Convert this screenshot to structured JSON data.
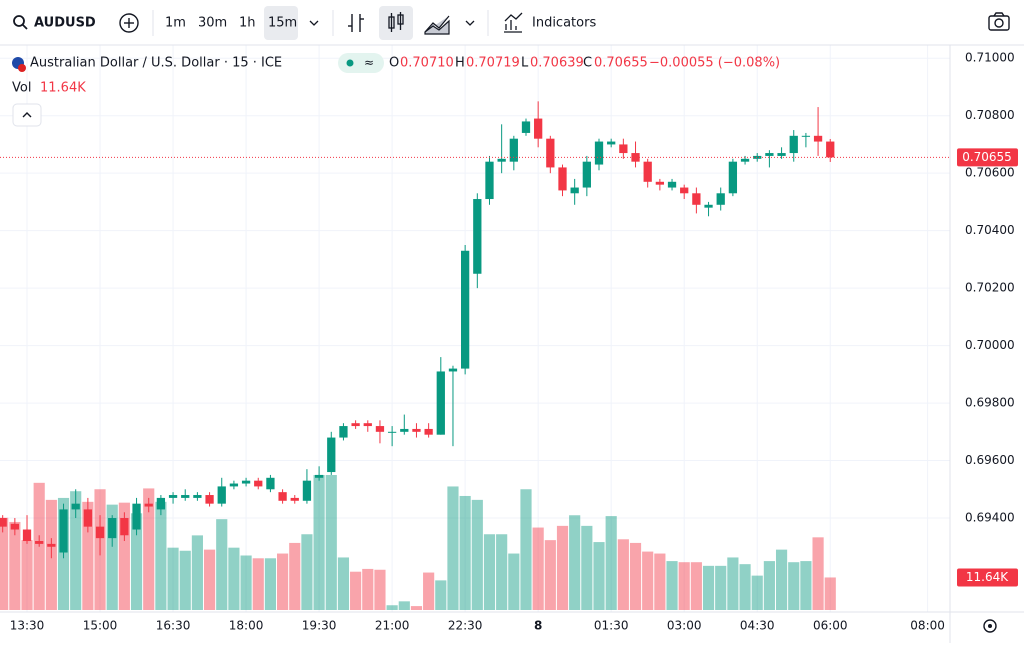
{
  "toolbar": {
    "symbol": "AUDUSD",
    "intervals": [
      "1m",
      "30m",
      "1h",
      "15m"
    ],
    "indicators": "Indicators"
  },
  "legend": {
    "name": "Australian Dollar / U.S. Dollar · 15 · ICE",
    "o_label": "O",
    "o": "0.70710",
    "h_label": "H",
    "h": "0.70719",
    "l_label": "L",
    "l": "0.70639",
    "c_label": "C",
    "change": "−0.00055 (−0.08%)",
    "vol_label": "Vol"
  },
  "chart_data": {
    "type": "candlestick",
    "up_color": "#089981",
    "down_color": "#f23645",
    "grid": true,
    "open": [
      0.694,
      0.6938,
      0.6936,
      0.6932,
      0.6931,
      0.6928,
      0.6943,
      0.6943,
      0.6937,
      0.6933,
      0.694,
      0.6936,
      0.6945,
      0.6943,
      0.6947,
      0.6947,
      0.6947,
      0.6948,
      0.6945,
      0.6951,
      0.6952,
      0.6953,
      0.695,
      0.6949,
      0.6947,
      0.6946,
      0.6954,
      0.6956,
      0.6968,
      0.6973,
      0.6973,
      0.6972,
      0.697,
      0.697,
      0.6971,
      0.6971,
      0.6969,
      0.6991,
      0.6992,
      0.7025,
      0.7051,
      0.7064,
      0.7064,
      0.7074,
      0.7079,
      0.7072,
      0.7062,
      0.7053,
      0.7055,
      0.7063,
      0.707,
      0.707,
      0.7067,
      0.7064,
      0.7057,
      0.7055,
      0.7055,
      0.7053,
      0.7048,
      0.7049,
      0.7053,
      0.7064,
      0.7065,
      0.7066,
      0.7066,
      0.7067,
      0.7073,
      0.7073,
      0.7071
    ],
    "high": [
      0.6941,
      0.694,
      0.6941,
      0.6934,
      0.6933,
      0.6945,
      0.695,
      0.6947,
      0.6941,
      0.6941,
      0.6942,
      0.6947,
      0.6947,
      0.6948,
      0.6949,
      0.695,
      0.6949,
      0.6949,
      0.6954,
      0.6953,
      0.6954,
      0.6954,
      0.6955,
      0.695,
      0.6948,
      0.6957,
      0.6958,
      0.697,
      0.6973,
      0.6974,
      0.6974,
      0.6974,
      0.6972,
      0.6976,
      0.6973,
      0.6973,
      0.6996,
      0.6993,
      0.7035,
      0.7053,
      0.7066,
      0.7077,
      0.7073,
      0.7079,
      0.7085,
      0.7073,
      0.7063,
      0.7058,
      0.7066,
      0.7072,
      0.7072,
      0.7072,
      0.7071,
      0.7065,
      0.7058,
      0.7058,
      0.7056,
      0.7055,
      0.705,
      0.7055,
      0.7065,
      0.7066,
      0.7067,
      0.7068,
      0.7069,
      0.7075,
      0.7074,
      0.7083,
      0.70719
    ],
    "low": [
      0.6935,
      0.6934,
      0.6931,
      0.693,
      0.6926,
      0.6926,
      0.694,
      0.6935,
      0.6927,
      0.693,
      0.6932,
      0.6934,
      0.6942,
      0.6941,
      0.6945,
      0.6946,
      0.6946,
      0.6944,
      0.6944,
      0.695,
      0.6951,
      0.695,
      0.6949,
      0.6945,
      0.6945,
      0.6945,
      0.6953,
      0.6955,
      0.6967,
      0.6971,
      0.697,
      0.6966,
      0.6965,
      0.6969,
      0.6968,
      0.6968,
      0.6969,
      0.6965,
      0.699,
      0.702,
      0.7049,
      0.706,
      0.7061,
      0.7073,
      0.7069,
      0.706,
      0.7052,
      0.7049,
      0.7052,
      0.7061,
      0.7069,
      0.7065,
      0.7062,
      0.7055,
      0.7054,
      0.7054,
      0.7051,
      0.7046,
      0.7045,
      0.7047,
      0.7052,
      0.7063,
      0.7064,
      0.7062,
      0.7065,
      0.7064,
      0.7069,
      0.7066,
      0.70639
    ],
    "close": [
      0.6937,
      0.6936,
      0.6932,
      0.6931,
      0.693,
      0.6943,
      0.6945,
      0.6937,
      0.6933,
      0.694,
      0.6934,
      0.6945,
      0.6944,
      0.6947,
      0.6948,
      0.6948,
      0.6948,
      0.6945,
      0.6951,
      0.6952,
      0.6953,
      0.6951,
      0.6954,
      0.6946,
      0.6946,
      0.6953,
      0.6955,
      0.6968,
      0.6972,
      0.6972,
      0.6972,
      0.697,
      0.697,
      0.6971,
      0.697,
      0.6969,
      0.6991,
      0.6992,
      0.7033,
      0.7051,
      0.7064,
      0.7065,
      0.7072,
      0.7078,
      0.7072,
      0.7062,
      0.7054,
      0.7055,
      0.7064,
      0.7071,
      0.7071,
      0.7067,
      0.7064,
      0.7057,
      0.7056,
      0.7057,
      0.7053,
      0.7049,
      0.7049,
      0.7053,
      0.7064,
      0.7065,
      0.7066,
      0.7067,
      0.7067,
      0.7073,
      0.7073,
      0.7071,
      0.70655
    ],
    "volume": [
      33.0,
      31.5,
      25.0,
      45.5,
      39.4,
      40.1,
      42.5,
      38.7,
      43.2,
      37.7,
      38.4,
      34.6,
      43.5,
      38.7,
      22.3,
      21.2,
      26.7,
      21.6,
      32.5,
      22.3,
      19.5,
      18.5,
      18.5,
      20.2,
      24.0,
      27.1,
      48.3,
      48.3,
      18.8,
      13.7,
      14.7,
      14.4,
      1.7,
      3.1,
      1.4,
      13.4,
      10.6,
      44.2,
      40.8,
      39.4,
      27.1,
      27.1,
      20.2,
      43.2,
      29.5,
      25.0,
      30.1,
      33.9,
      30.1,
      24.3,
      33.6,
      25.3,
      24.0,
      20.9,
      20.2,
      17.5,
      17.1,
      17.1,
      15.8,
      15.8,
      18.8,
      16.4,
      12.3,
      17.5,
      21.6,
      17.1,
      17.5,
      26.0,
      11.64
    ],
    "last_labels": {
      "price": "0.70655",
      "volume": "11.64K"
    },
    "ylim": [
      0.69073,
      0.71046
    ],
    "yticks": [
      {
        "value": 0.694,
        "label": "0.69400"
      },
      {
        "value": 0.696,
        "label": "0.69600"
      },
      {
        "value": 0.698,
        "label": "0.69800"
      },
      {
        "value": 0.7,
        "label": "0.70000"
      },
      {
        "value": 0.702,
        "label": "0.70200"
      },
      {
        "value": 0.704,
        "label": "0.70400"
      },
      {
        "value": 0.706,
        "label": "0.70600"
      },
      {
        "value": 0.708,
        "label": "0.70800"
      },
      {
        "value": 0.71,
        "label": "0.71000"
      }
    ],
    "xlim": [
      -0.22,
      77.84
    ],
    "xticks": [
      {
        "value": 2,
        "label": "13:30"
      },
      {
        "value": 8,
        "label": "15:00"
      },
      {
        "value": 14,
        "label": "16:30"
      },
      {
        "value": 20,
        "label": "18:00"
      },
      {
        "value": 26,
        "label": "19:30"
      },
      {
        "value": 32,
        "label": "21:00"
      },
      {
        "value": 38,
        "label": "22:30"
      },
      {
        "value": 44,
        "label": "8"
      },
      {
        "value": 50,
        "label": "01:30"
      },
      {
        "value": 56,
        "label": "03:00"
      },
      {
        "value": 62,
        "label": "04:30"
      },
      {
        "value": 68,
        "label": "06:00"
      },
      {
        "value": 76,
        "label": "08:00"
      }
    ]
  }
}
